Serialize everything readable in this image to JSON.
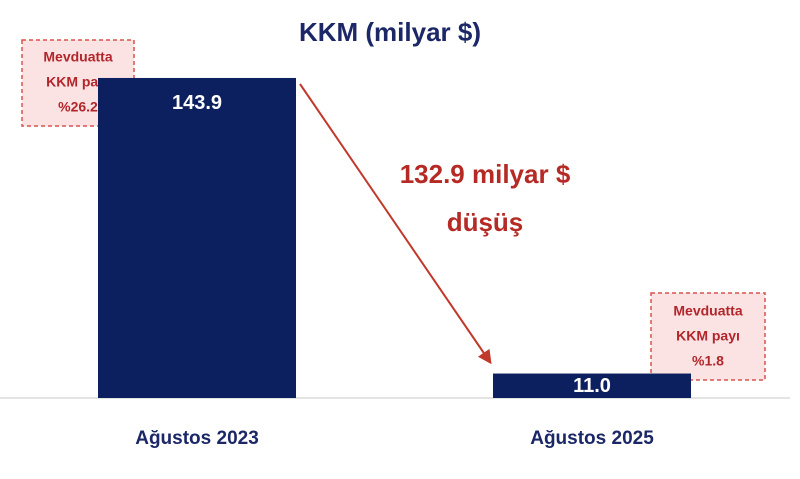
{
  "chart_data": {
    "type": "bar",
    "title": "KKM (milyar $)",
    "categories": [
      "Ağustos 2023",
      "Ağustos 2025"
    ],
    "values": [
      143.9,
      11.0
    ],
    "value_labels": [
      "143.9",
      "11.0"
    ],
    "color": "#0c1f5e",
    "ylim": [
      0,
      150
    ],
    "annotations": [
      {
        "lines": [
          "Mevduatta",
          "KKM payı",
          "%26.2"
        ]
      },
      {
        "lines": [
          "Mevduatta",
          "KKM payı",
          "%1.8"
        ]
      },
      {
        "lines": [
          "132.9 milyar $",
          "düşüş"
        ]
      }
    ]
  }
}
